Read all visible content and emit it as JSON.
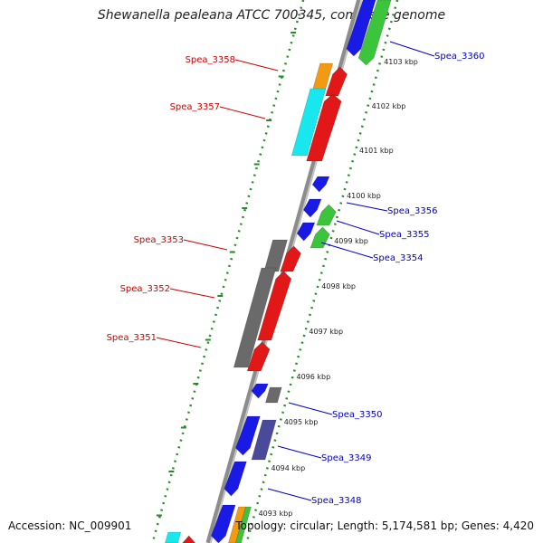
{
  "title": "Shewanella pealeana ATCC 700345, complete genome",
  "accession": "Accession: NC_009901",
  "footer": "Topology: circular; Length: 5,174,581 bp; Genes: 4,420",
  "colors": {
    "blue": "#1a1ae6",
    "green": "#3cc43c",
    "red": "#e21818",
    "gray": "#6a6a6a",
    "cyan": "#18e8ee",
    "orange": "#f29a12",
    "slate": "#4a4a9a",
    "label_left": "#cc0000",
    "label_right": "#0000cc",
    "backbone": "#8c8c8c",
    "tickdot": "#2a8a2a"
  },
  "ticks": [
    "4103 kbp",
    "4102 kbp",
    "4101 kbp",
    "4100 kbp",
    "4099 kbp",
    "4098 kbp",
    "4097 kbp",
    "4096 kbp",
    "4095 kbp",
    "4094 kbp",
    "4093 kbp"
  ],
  "left_genes": [
    "Spea_3358",
    "Spea_3357",
    "Spea_3353",
    "Spea_3352",
    "Spea_3351"
  ],
  "right_genes": [
    "Spea_3360",
    "Spea_3356",
    "Spea_3355",
    "Spea_3354",
    "Spea_3350",
    "Spea_3349",
    "Spea_3348"
  ]
}
